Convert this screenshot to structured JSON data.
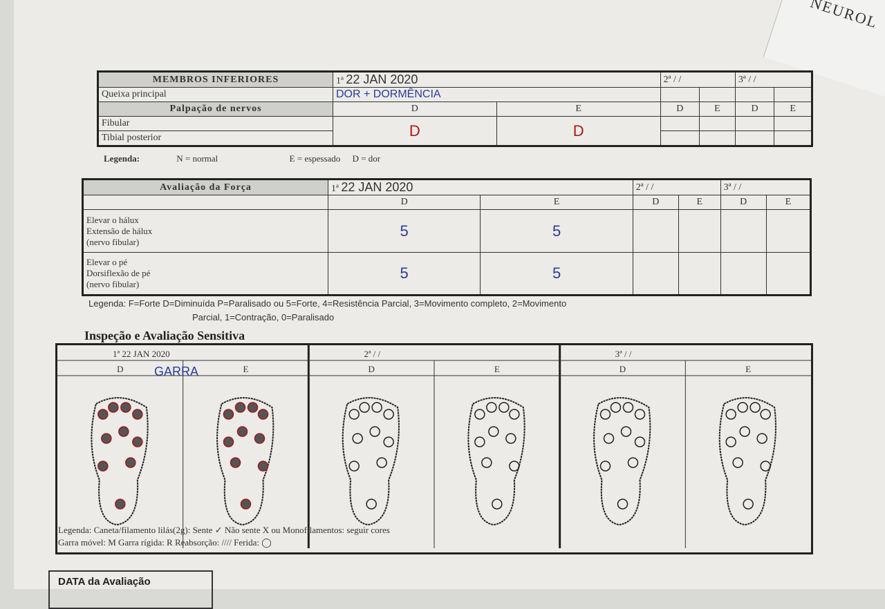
{
  "corner_text": "NEUROL",
  "t1": {
    "title": "MEMBROS INFERIORES",
    "rows": [
      "Queixa principal",
      "Palpação de nervos",
      "Fibular",
      "Tibial posterior"
    ],
    "evals": [
      {
        "n": "1ª",
        "date": "22 JAN 2020"
      },
      {
        "n": "2ª",
        "date": "/   /"
      },
      {
        "n": "3ª",
        "date": "/   /"
      }
    ],
    "d": "D",
    "e": "E",
    "queixa": "DOR + DORMÊNCIA",
    "fib_d": "D",
    "fib_e": "D",
    "legend": {
      "label": "Legenda:",
      "n": "N = normal",
      "e": "E = espessado",
      "d": "D = dor"
    }
  },
  "t2": {
    "title": "Avaliação da Força",
    "rows": [
      "Elevar o hálux\nExtensão de hálux\n(nervo fibular)",
      "Elevar o pé\nDorsiflexão de pé\n(nervo fibular)"
    ],
    "evals": [
      {
        "n": "1ª",
        "date": "22 JAN 2020"
      },
      {
        "n": "2ª",
        "date": "/   /"
      },
      {
        "n": "3ª",
        "date": "/   /"
      }
    ],
    "values": [
      [
        "5",
        "5"
      ],
      [
        "5",
        "5"
      ]
    ],
    "legend1": "Legenda: F=Forte   D=Diminuída   P=Paralisado ou 5=Forte, 4=Resistência Parcial, 3=Movimento completo, 2=Movimento",
    "legend2": "Parcial, 1=Contração, 0=Paralisado"
  },
  "t3": {
    "title": "Inspeção e Avaliação Sensitiva",
    "evals": [
      {
        "n": "1ª",
        "date": "22 JAN 2020"
      },
      {
        "n": "2ª",
        "date": "/   /"
      },
      {
        "n": "3ª",
        "date": "/   /"
      }
    ],
    "d": "D",
    "e": "E",
    "note": "GARRA",
    "legend1": "Legenda: Caneta/filamento lilás(2g):  Sente ✓  Não sente X        ou      Monofilamentos: seguir cores",
    "legend2": "Garra móvel: M     Garra rígida: R        Reabsorção: ////       Ferida: ◯"
  },
  "bottom": {
    "label": "DATA da Avaliação"
  },
  "colors": {
    "ink_blue": "#2a3b9a",
    "ink_red": "#b01818",
    "paper": "#ecebe8"
  }
}
